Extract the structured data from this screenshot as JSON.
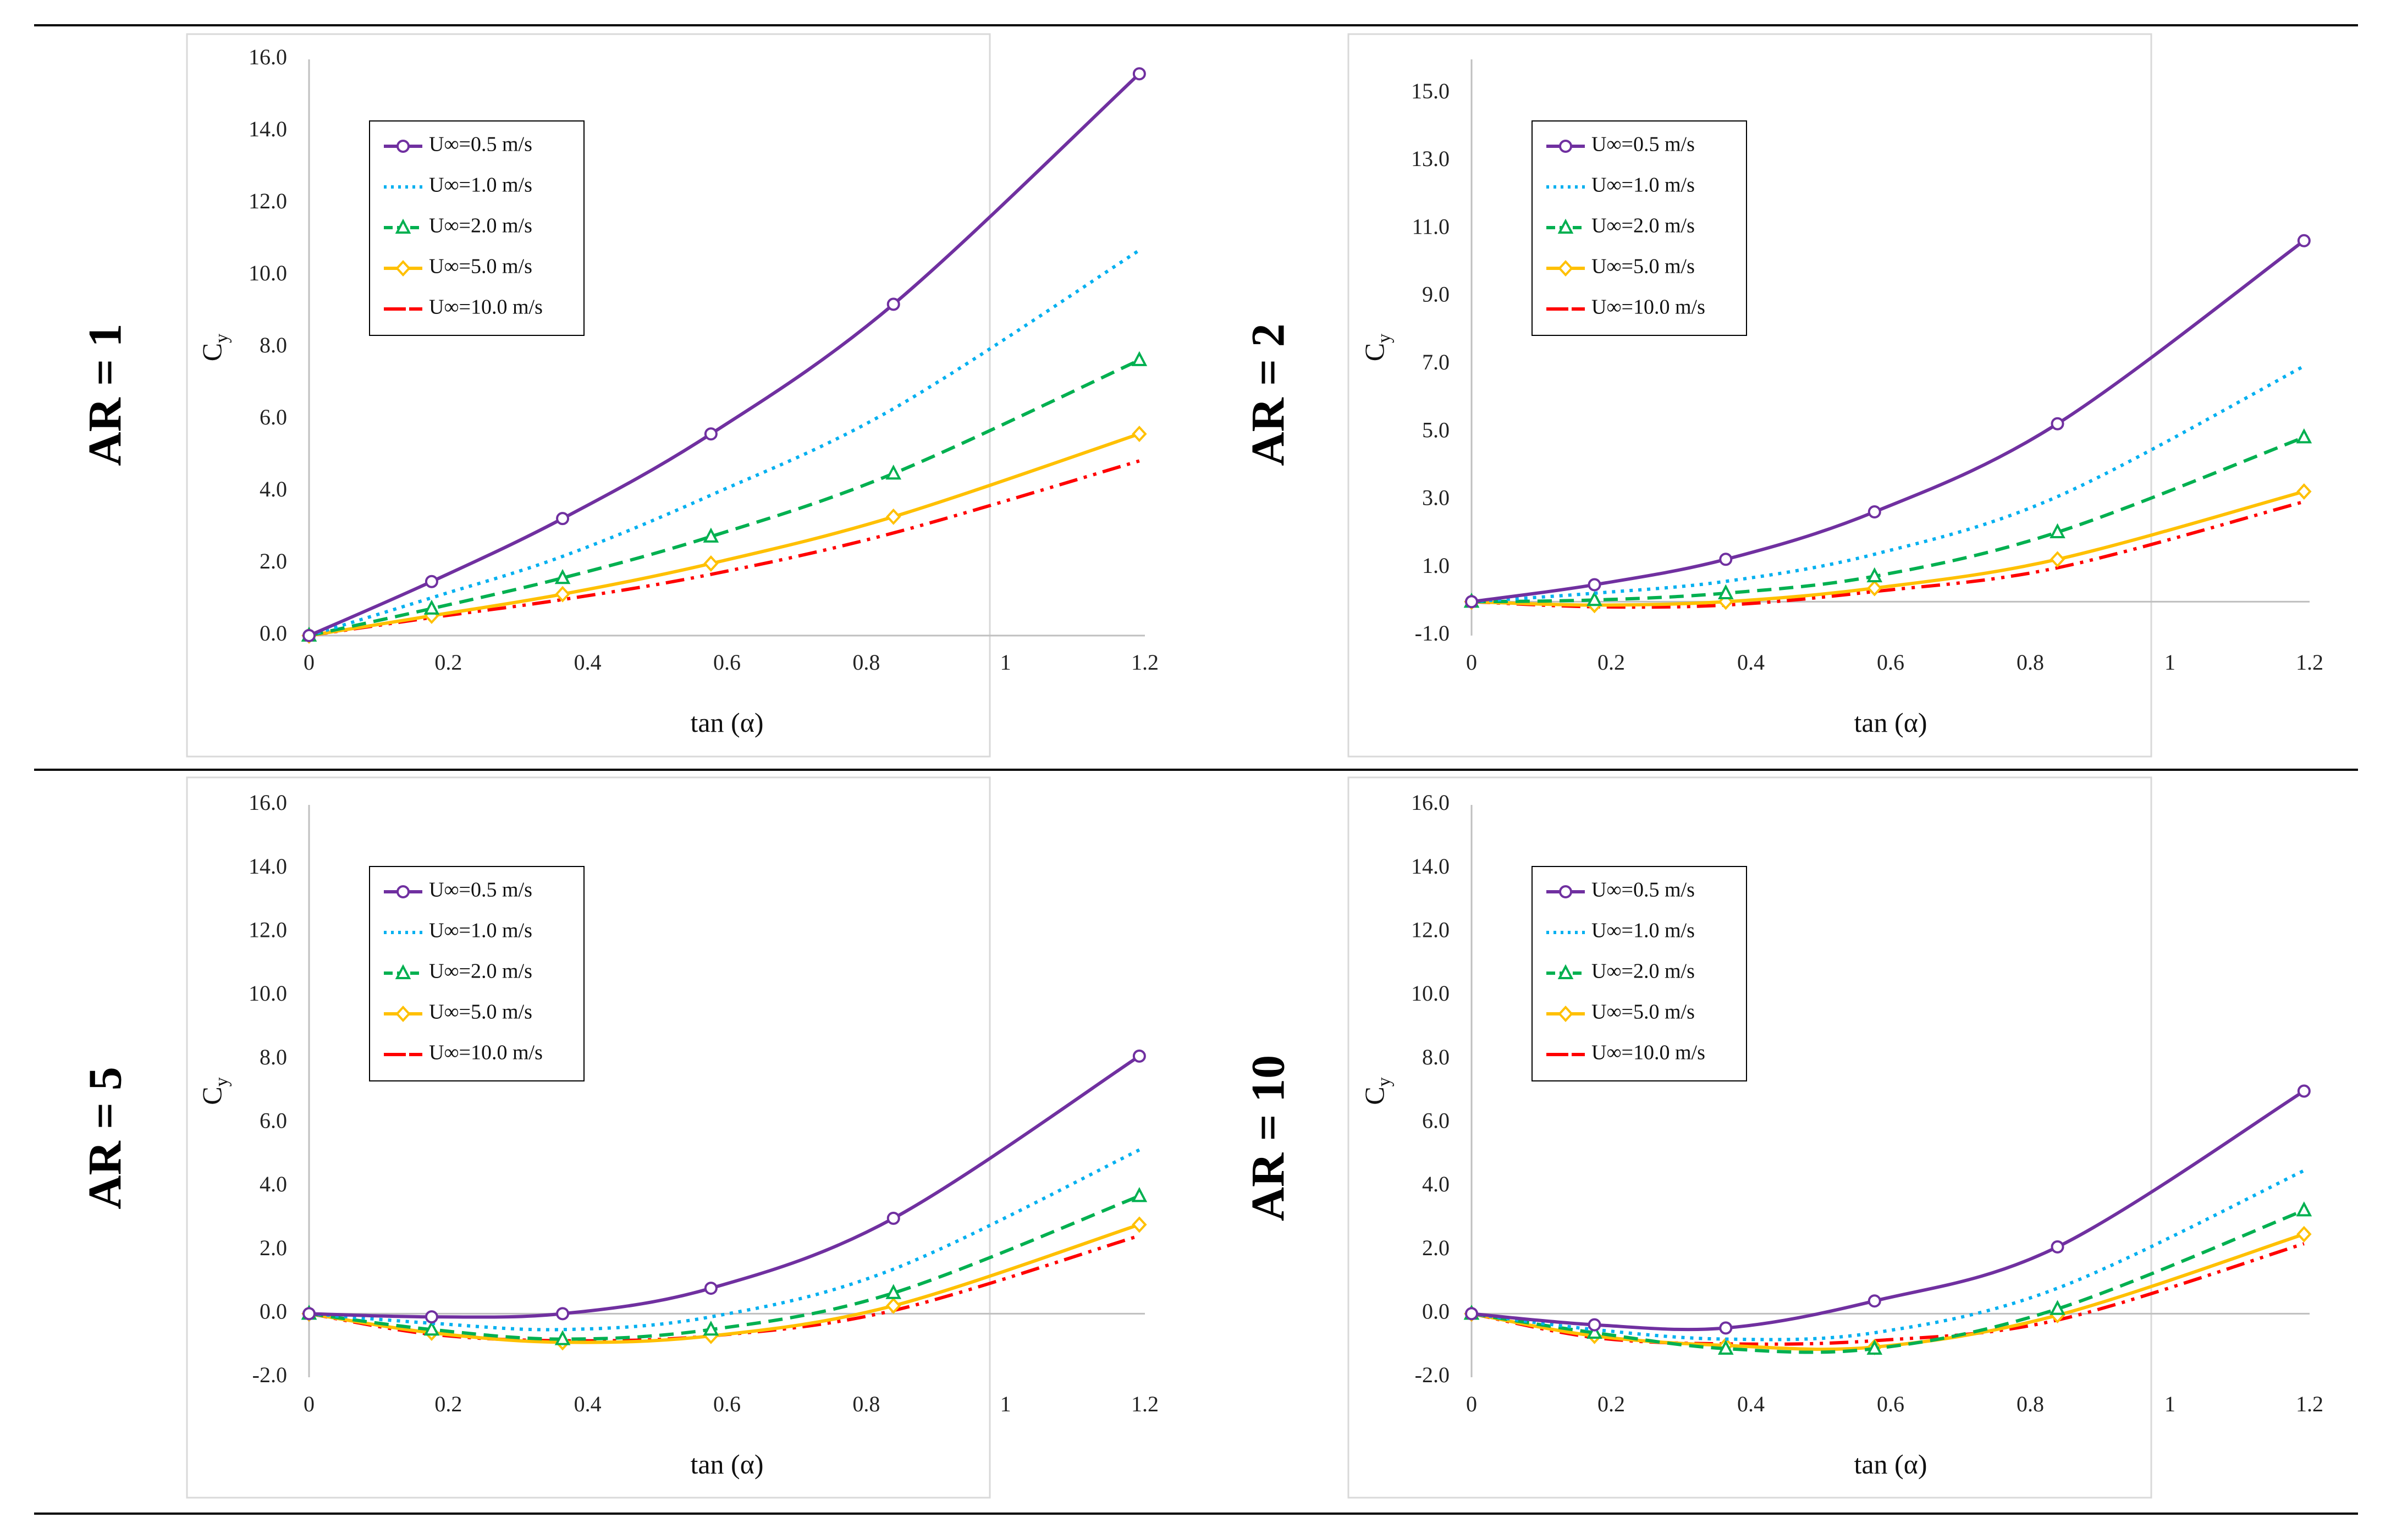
{
  "chart_data": [
    {
      "type": "line",
      "panel_label": "AR = 1",
      "xlabel": "tan (α)",
      "ylabel": "C",
      "ylabel_sub": "y",
      "xlim": [
        0,
        1.2
      ],
      "ylim": [
        0,
        16
      ],
      "xticks": [
        0,
        0.2,
        0.4,
        0.6,
        0.8,
        1,
        1.2
      ],
      "xtick_labels": [
        "0",
        "0.2",
        "0.4",
        "0.6",
        "0.8",
        "1",
        "1.2"
      ],
      "yticks": [
        0,
        2,
        4,
        6,
        8,
        10,
        12,
        14,
        16
      ],
      "ytick_labels": [
        "0.0",
        "2.0",
        "4.0",
        "6.0",
        "8.0",
        "10.0",
        "12.0",
        "14.0",
        "16.0"
      ],
      "grid": false,
      "legend_position": "top-left",
      "x": [
        0,
        0.176,
        0.364,
        0.577,
        0.839,
        1.192
      ],
      "series": [
        {
          "name": "U∞=0.5 m/s",
          "values": [
            0,
            1.5,
            3.25,
            5.6,
            9.2,
            15.6
          ]
        },
        {
          "name": "U∞=1.0 m/s",
          "values": [
            0,
            1.05,
            2.2,
            3.9,
            6.3,
            10.7
          ]
        },
        {
          "name": "U∞=2.0 m/s",
          "values": [
            0,
            0.75,
            1.6,
            2.75,
            4.5,
            7.65
          ]
        },
        {
          "name": "U∞=5.0 m/s",
          "values": [
            0,
            0.55,
            1.15,
            2.0,
            3.3,
            5.6
          ]
        },
        {
          "name": "U∞=10.0 m/s",
          "values": [
            0,
            0.5,
            1.0,
            1.7,
            2.85,
            4.85
          ]
        }
      ]
    },
    {
      "type": "line",
      "panel_label": "AR = 2",
      "xlabel": "tan (α)",
      "ylabel": "C",
      "ylabel_sub": "y",
      "xlim": [
        0,
        1.2
      ],
      "ylim": [
        -1,
        16
      ],
      "xticks": [
        0,
        0.2,
        0.4,
        0.6,
        0.8,
        1,
        1.2
      ],
      "xtick_labels": [
        "0",
        "0.2",
        "0.4",
        "0.6",
        "0.8",
        "1",
        "1.2"
      ],
      "yticks": [
        -1,
        1,
        3,
        5,
        7,
        9,
        11,
        13,
        15
      ],
      "ytick_labels": [
        "-1.0",
        "1.0",
        "3.0",
        "5.0",
        "7.0",
        "9.0",
        "11.0",
        "13.0",
        "15.0"
      ],
      "grid": false,
      "legend_position": "top-left",
      "x": [
        0,
        0.176,
        0.364,
        0.577,
        0.839,
        1.192
      ],
      "series": [
        {
          "name": "U∞=0.5 m/s",
          "values": [
            0,
            0.5,
            1.25,
            2.65,
            5.25,
            10.65
          ]
        },
        {
          "name": "U∞=1.0 m/s",
          "values": [
            0,
            0.25,
            0.6,
            1.4,
            3.1,
            6.95
          ]
        },
        {
          "name": "U∞=2.0 m/s",
          "values": [
            0,
            0.05,
            0.25,
            0.75,
            2.05,
            4.85
          ]
        },
        {
          "name": "U∞=5.0 m/s",
          "values": [
            0,
            -0.1,
            0.0,
            0.4,
            1.25,
            3.25
          ]
        },
        {
          "name": "U∞=10.0 m/s",
          "values": [
            0,
            -0.15,
            -0.1,
            0.3,
            1.0,
            2.95
          ]
        }
      ]
    },
    {
      "type": "line",
      "panel_label": "AR = 5",
      "xlabel": "tan (α)",
      "ylabel": "C",
      "ylabel_sub": "y",
      "xlim": [
        0,
        1.2
      ],
      "ylim": [
        -2,
        16
      ],
      "xticks": [
        0,
        0.2,
        0.4,
        0.6,
        0.8,
        1,
        1.2
      ],
      "xtick_labels": [
        "0",
        "0.2",
        "0.4",
        "0.6",
        "0.8",
        "1",
        "1.2"
      ],
      "yticks": [
        -2,
        0,
        2,
        4,
        6,
        8,
        10,
        12,
        14,
        16
      ],
      "ytick_labels": [
        "-2.0",
        "0.0",
        "2.0",
        "4.0",
        "6.0",
        "8.0",
        "10.0",
        "12.0",
        "14.0",
        "16.0"
      ],
      "grid": false,
      "legend_position": "top-left",
      "x": [
        0,
        0.176,
        0.364,
        0.577,
        0.839,
        1.192
      ],
      "series": [
        {
          "name": "U∞=0.5 m/s",
          "values": [
            0,
            -0.1,
            0.0,
            0.8,
            3.0,
            8.1
          ]
        },
        {
          "name": "U∞=1.0 m/s",
          "values": [
            0,
            -0.3,
            -0.5,
            -0.1,
            1.4,
            5.15
          ]
        },
        {
          "name": "U∞=2.0 m/s",
          "values": [
            0,
            -0.5,
            -0.8,
            -0.5,
            0.65,
            3.7
          ]
        },
        {
          "name": "U∞=5.0 m/s",
          "values": [
            0,
            -0.6,
            -0.9,
            -0.7,
            0.25,
            2.8
          ]
        },
        {
          "name": "U∞=10.0 m/s",
          "values": [
            0,
            -0.65,
            -0.85,
            -0.7,
            0.1,
            2.45
          ]
        }
      ]
    },
    {
      "type": "line",
      "panel_label": "AR = 10",
      "xlabel": "tan (α)",
      "ylabel": "C",
      "ylabel_sub": "y",
      "xlim": [
        0,
        1.2
      ],
      "ylim": [
        -2,
        16
      ],
      "xticks": [
        0,
        0.2,
        0.4,
        0.6,
        0.8,
        1,
        1.2
      ],
      "xtick_labels": [
        "0",
        "0.2",
        "0.4",
        "0.6",
        "0.8",
        "1",
        "1.2"
      ],
      "yticks": [
        -2,
        0,
        2,
        4,
        6,
        8,
        10,
        12,
        14,
        16
      ],
      "ytick_labels": [
        "-2.0",
        "0.0",
        "2.0",
        "4.0",
        "6.0",
        "8.0",
        "10.0",
        "12.0",
        "14.0",
        "16.0"
      ],
      "grid": false,
      "legend_position": "top-left",
      "x": [
        0,
        0.176,
        0.364,
        0.577,
        0.839,
        1.192
      ],
      "series": [
        {
          "name": "U∞=0.5 m/s",
          "values": [
            0,
            -0.35,
            -0.45,
            0.4,
            2.1,
            7.0
          ]
        },
        {
          "name": "U∞=1.0 m/s",
          "values": [
            0,
            -0.5,
            -0.8,
            -0.6,
            0.8,
            4.5
          ]
        },
        {
          "name": "U∞=2.0 m/s",
          "values": [
            0,
            -0.6,
            -1.1,
            -1.1,
            0.15,
            3.25
          ]
        },
        {
          "name": "U∞=5.0 m/s",
          "values": [
            0,
            -0.7,
            -1.0,
            -1.05,
            -0.05,
            2.5
          ]
        },
        {
          "name": "U∞=10.0 m/s",
          "values": [
            0,
            -0.75,
            -0.95,
            -0.85,
            -0.2,
            2.2
          ]
        }
      ]
    }
  ],
  "series_styles": [
    {
      "color": "#7030A0",
      "dash": "none",
      "marker": "circle"
    },
    {
      "color": "#00B0F0",
      "dash": "dot",
      "marker": "none"
    },
    {
      "color": "#00B050",
      "dash": "dash",
      "marker": "triangle"
    },
    {
      "color": "#FFC000",
      "dash": "none",
      "marker": "diamond"
    },
    {
      "color": "#FF0000",
      "dash": "dashdotdot",
      "marker": "none"
    }
  ]
}
